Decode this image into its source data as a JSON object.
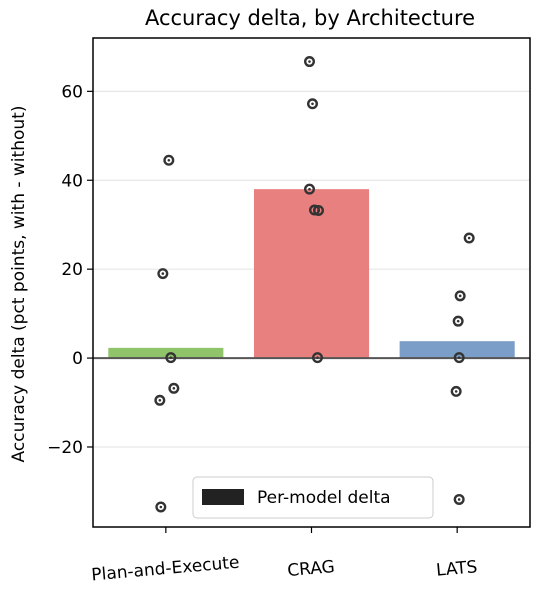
{
  "chart_data": {
    "type": "bar",
    "title": "Accuracy delta, by Architecture",
    "xlabel": "",
    "ylabel": "Accuracy delta (pct points, with - without)",
    "categories": [
      "Plan-and-Execute",
      "CRAG",
      "LATS"
    ],
    "values": [
      2.3,
      38.0,
      3.8
    ],
    "bar_colors": [
      "#8fc46a",
      "#e88080",
      "#7b9ec8"
    ],
    "ylim": [
      -38,
      72
    ],
    "yticks": [
      -20,
      0,
      20,
      40,
      60
    ],
    "ytick_labels": [
      "−20",
      "0",
      "20",
      "40",
      "60"
    ],
    "grid": "y",
    "points": [
      [
        44.5,
        19.0,
        0.1,
        -6.8,
        -9.5,
        -33.5
      ],
      [
        66.7,
        57.2,
        38.0,
        33.3,
        33.2,
        0.1
      ],
      [
        27.0,
        14.0,
        8.3,
        0.1,
        -7.5,
        -31.8
      ]
    ],
    "point_color": "#333333",
    "legend": {
      "label": "Per-model delta",
      "position": "bottom-center",
      "swatch_color": "#222222"
    }
  }
}
